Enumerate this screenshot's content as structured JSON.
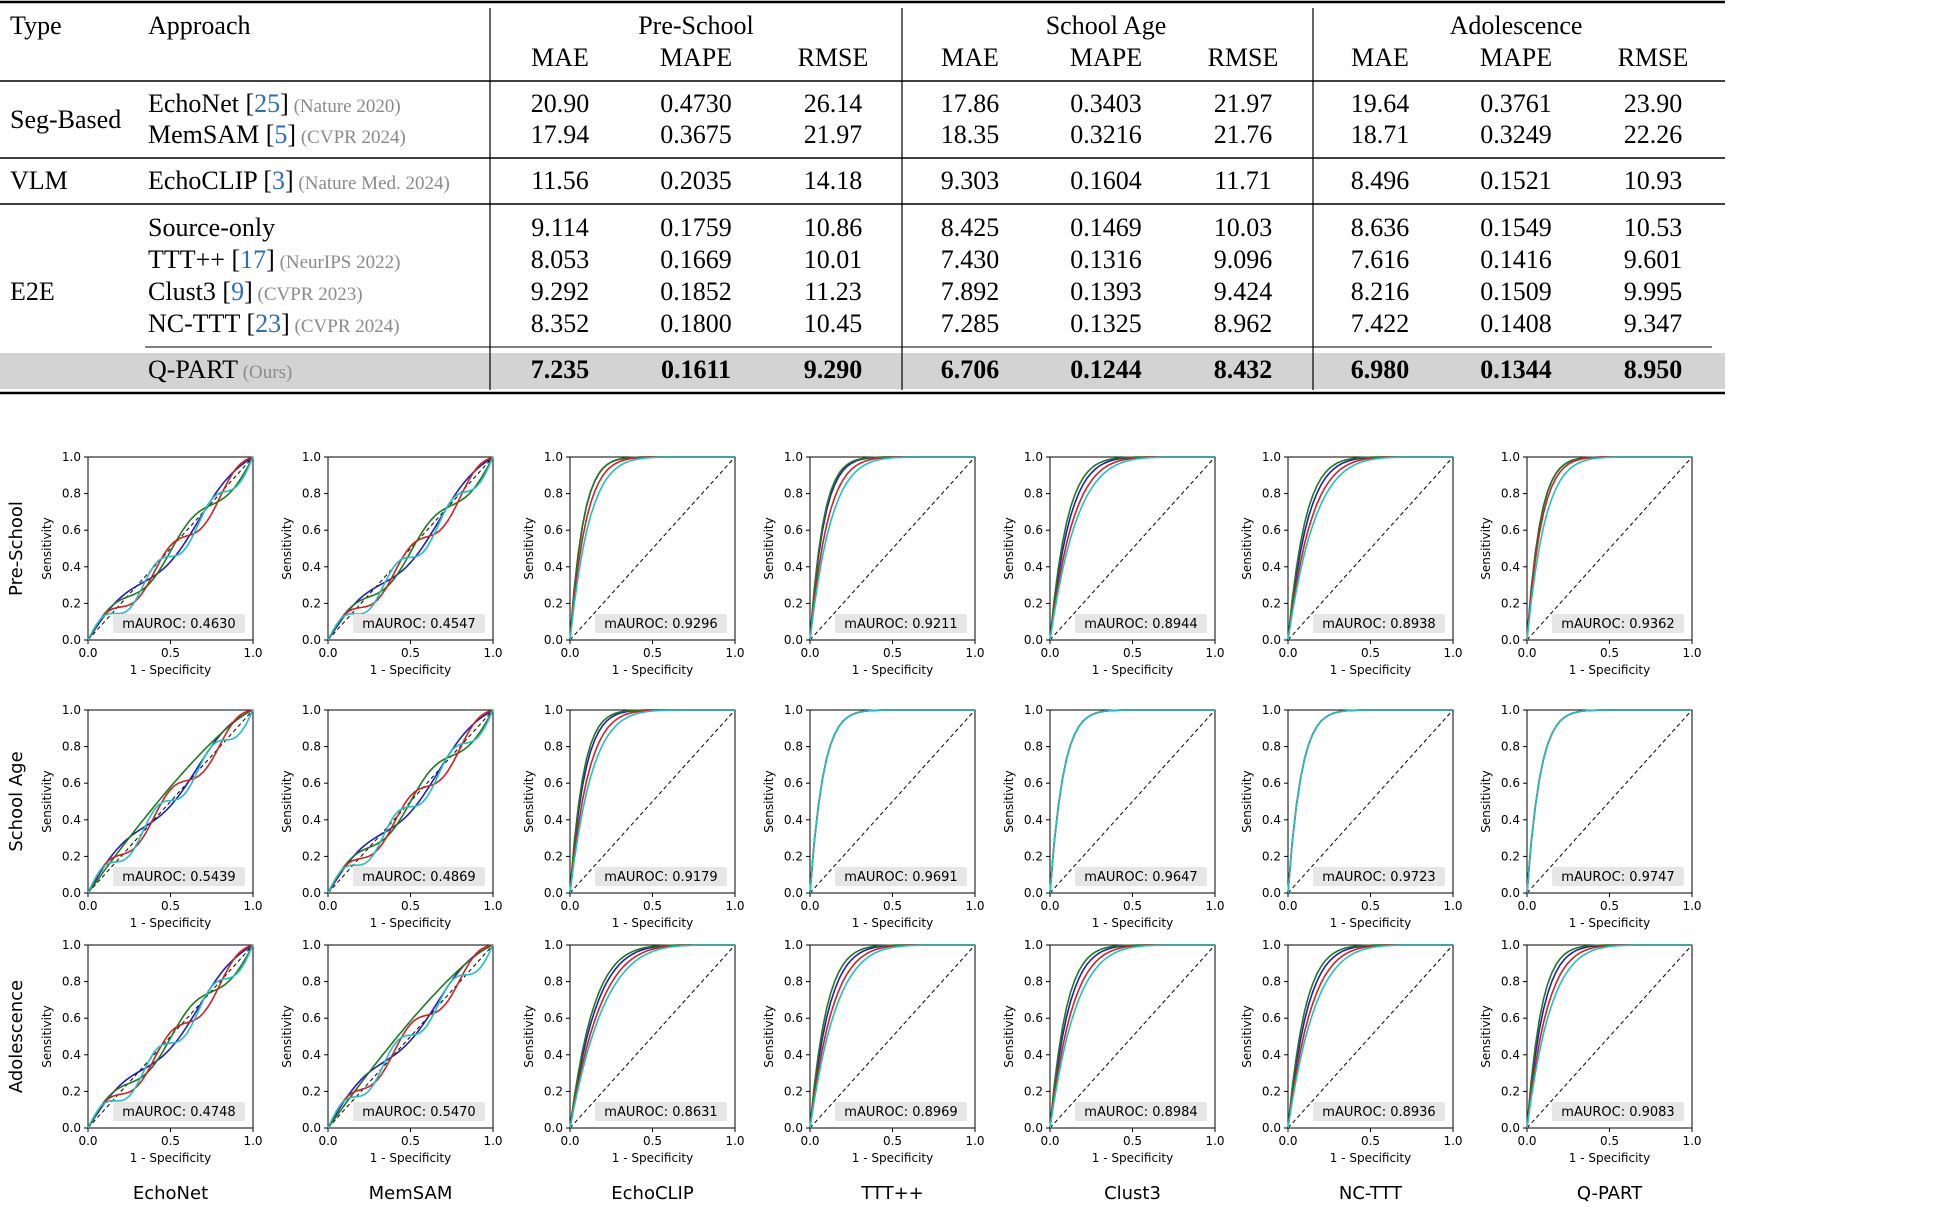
{
  "table": {
    "header": {
      "type": "Type",
      "approach": "Approach",
      "groups": [
        "Pre-School",
        "School Age",
        "Adolescence"
      ],
      "metrics": [
        "MAE",
        "MAPE",
        "RMSE"
      ]
    },
    "sections": [
      {
        "type": "Seg-Based",
        "rows": [
          {
            "name": "EchoNet",
            "cite": "25",
            "venue": "(Nature 2020)",
            "values": [
              "20.90",
              "0.4730",
              "26.14",
              "17.86",
              "0.3403",
              "21.97",
              "19.64",
              "0.3761",
              "23.90"
            ]
          },
          {
            "name": "MemSAM",
            "cite": "5",
            "venue": "(CVPR 2024)",
            "values": [
              "17.94",
              "0.3675",
              "21.97",
              "18.35",
              "0.3216",
              "21.76",
              "18.71",
              "0.3249",
              "22.26"
            ]
          }
        ]
      },
      {
        "type": "VLM",
        "rows": [
          {
            "name": "EchoCLIP",
            "cite": "3",
            "venue": "(Nature Med. 2024)",
            "values": [
              "11.56",
              "0.2035",
              "14.18",
              "9.303",
              "0.1604",
              "11.71",
              "8.496",
              "0.1521",
              "10.93"
            ]
          }
        ]
      },
      {
        "type": "E2E",
        "rows": [
          {
            "name": "Source-only",
            "cite": "",
            "venue": "",
            "values": [
              "9.114",
              "0.1759",
              "10.86",
              "8.425",
              "0.1469",
              "10.03",
              "8.636",
              "0.1549",
              "10.53"
            ]
          },
          {
            "name": "TTT++",
            "cite": "17",
            "venue": "(NeurIPS 2022)",
            "values": [
              "8.053",
              "0.1669",
              "10.01",
              "7.430",
              "0.1316",
              "9.096",
              "7.616",
              "0.1416",
              "9.601"
            ]
          },
          {
            "name": "Clust3",
            "cite": "9",
            "venue": "(CVPR 2023)",
            "values": [
              "9.292",
              "0.1852",
              "11.23",
              "7.892",
              "0.1393",
              "9.424",
              "8.216",
              "0.1509",
              "9.995"
            ]
          },
          {
            "name": "NC-TTT",
            "cite": "23",
            "venue": "(CVPR 2024)",
            "values": [
              "8.352",
              "0.1800",
              "10.45",
              "7.285",
              "0.1325",
              "8.962",
              "7.422",
              "0.1408",
              "9.347"
            ]
          }
        ]
      }
    ],
    "ours": {
      "name": "Q-PART",
      "venue": "(Ours)",
      "values": [
        "7.235",
        "0.1611",
        "9.290",
        "6.706",
        "0.1244",
        "8.432",
        "6.980",
        "0.1344",
        "8.950"
      ]
    }
  },
  "roc_grid": {
    "row_labels": [
      "Pre-School",
      "School Age",
      "Adolescence"
    ],
    "column_labels": [
      "EchoNet",
      "MemSAM",
      "EchoCLIP",
      "TTT++",
      "Clust3",
      "NC-TTT",
      "Q-PART"
    ],
    "xlabel": "1 - Specificity",
    "ylabel": "Sensitivity",
    "tick_x": [
      "0.0",
      "0.5",
      "1.0"
    ],
    "tick_y": [
      "0.0",
      "0.2",
      "0.4",
      "0.6",
      "0.8",
      "1.0"
    ],
    "auroc_prefix": "mAUROC: ",
    "auroc": [
      [
        "0.4630",
        "0.4547",
        "0.9296",
        "0.9211",
        "0.8944",
        "0.8938",
        "0.9362"
      ],
      [
        "0.5439",
        "0.4869",
        "0.9179",
        "0.9691",
        "0.9647",
        "0.9723",
        "0.9747"
      ],
      [
        "0.4748",
        "0.5470",
        "0.8631",
        "0.8969",
        "0.8984",
        "0.8936",
        "0.9083"
      ]
    ],
    "curve_colors": [
      "#1f1fbf",
      "#1f7a1f",
      "#d62020",
      "#20c0c0"
    ]
  },
  "chart_data": {
    "type": "line",
    "title": "",
    "xlabel": "1 - Specificity",
    "ylabel": "Sensitivity",
    "xlim": [
      0,
      1
    ],
    "ylim": [
      0,
      1
    ],
    "series_note": "ROC curves per method (columns) and age group (rows); 4 class curves each plus diagonal reference",
    "panels_auroc": {
      "Pre-School": {
        "EchoNet": 0.463,
        "MemSAM": 0.4547,
        "EchoCLIP": 0.9296,
        "TTT++": 0.9211,
        "Clust3": 0.8944,
        "NC-TTT": 0.8938,
        "Q-PART": 0.9362
      },
      "School Age": {
        "EchoNet": 0.5439,
        "MemSAM": 0.4869,
        "EchoCLIP": 0.9179,
        "TTT++": 0.9691,
        "Clust3": 0.9647,
        "NC-TTT": 0.9723,
        "Q-PART": 0.9747
      },
      "Adolescence": {
        "EchoNet": 0.4748,
        "MemSAM": 0.547,
        "EchoCLIP": 0.8631,
        "TTT++": 0.8969,
        "Clust3": 0.8984,
        "NC-TTT": 0.8936,
        "Q-PART": 0.9083
      }
    }
  }
}
